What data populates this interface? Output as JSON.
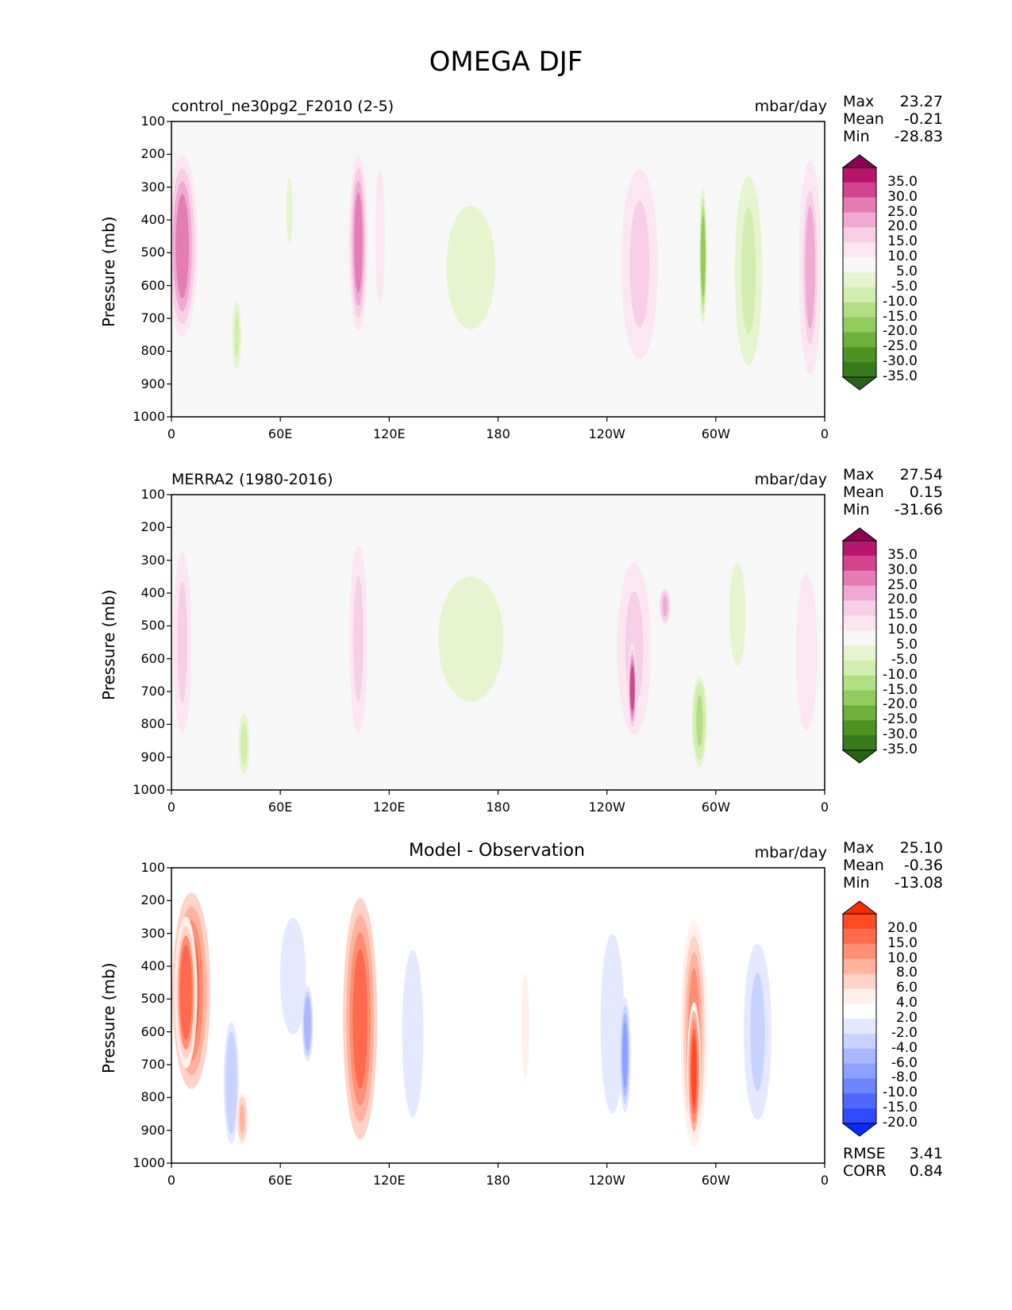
{
  "figure": {
    "title": "OMEGA DJF"
  },
  "chart_data": [
    {
      "type": "heatmap",
      "title_left": "control_ne30pg2_F2010 (2-5)",
      "units": "mbar/day",
      "ylabel": "Pressure (mb)",
      "y_ticks": [
        "100",
        "200",
        "300",
        "400",
        "500",
        "600",
        "700",
        "800",
        "900",
        "1000"
      ],
      "x_ticks": [
        "0",
        "60E",
        "120E",
        "180",
        "120W",
        "60W",
        "0"
      ],
      "xlim": [
        0,
        360
      ],
      "ylim": [
        1000,
        100
      ],
      "stats": [
        {
          "label": "Max",
          "value": "23.27"
        },
        {
          "label": "Mean",
          "value": "-0.21"
        },
        {
          "label": "Min",
          "value": "-28.83"
        }
      ],
      "colorbar": {
        "labels": [
          "35.0",
          "30.0",
          "25.0",
          "20.0",
          "15.0",
          "10.0",
          "5.0",
          "-5.0",
          "-10.0",
          "-15.0",
          "-20.0",
          "-25.0",
          "-30.0",
          "-35.0"
        ],
        "colors": [
          "#8e0152",
          "#b8166c",
          "#d1458f",
          "#e37db4",
          "#efaad3",
          "#f6cfe6",
          "#fbe6f1",
          "#f7f7f7",
          "#e6f5d0",
          "#d2edb0",
          "#b3df84",
          "#93cb5e",
          "#6fb03d",
          "#4d9222",
          "#387a1c",
          "#276419"
        ],
        "features": [
          {
            "lon": 6,
            "p_top": 180,
            "p_bot": 780,
            "width": 16,
            "value": 22
          },
          {
            "lon": 103,
            "p_top": 180,
            "p_bot": 760,
            "width": 10,
            "value": 22
          },
          {
            "lon": 115,
            "p_top": 140,
            "p_bot": 760,
            "width": 8,
            "value": 8
          },
          {
            "lon": 36,
            "p_top": 620,
            "p_bot": 880,
            "width": 6,
            "value": -12
          },
          {
            "lon": 65,
            "p_top": 180,
            "p_bot": 560,
            "width": 8,
            "value": -6
          },
          {
            "lon": 165,
            "p_top": 190,
            "p_bot": 900,
            "width": 60,
            "value": -6
          },
          {
            "lon": 258,
            "p_top": 170,
            "p_bot": 900,
            "width": 24,
            "value": 10
          },
          {
            "lon": 293,
            "p_top": 280,
            "p_bot": 740,
            "width": 4,
            "value": -22
          },
          {
            "lon": 318,
            "p_top": 190,
            "p_bot": 920,
            "width": 18,
            "value": -12
          },
          {
            "lon": 352,
            "p_top": 190,
            "p_bot": 900,
            "width": 12,
            "value": 16
          }
        ]
      }
    },
    {
      "type": "heatmap",
      "title_left": "MERRA2 (1980-2016)",
      "units": "mbar/day",
      "ylabel": "Pressure (mb)",
      "y_ticks": [
        "100",
        "200",
        "300",
        "400",
        "500",
        "600",
        "700",
        "800",
        "900",
        "1000"
      ],
      "x_ticks": [
        "0",
        "60E",
        "120E",
        "180",
        "120W",
        "60W",
        "0"
      ],
      "xlim": [
        0,
        360
      ],
      "ylim": [
        1000,
        100
      ],
      "stats": [
        {
          "label": "Max",
          "value": "27.54"
        },
        {
          "label": "Mean",
          "value": "0.15"
        },
        {
          "label": "Min",
          "value": "-31.66"
        }
      ],
      "colorbar": {
        "labels": [
          "35.0",
          "30.0",
          "25.0",
          "20.0",
          "15.0",
          "10.0",
          "5.0",
          "-5.0",
          "-10.0",
          "-15.0",
          "-20.0",
          "-25.0",
          "-30.0",
          "-35.0"
        ],
        "colors": [
          "#8e0152",
          "#b8166c",
          "#d1458f",
          "#e37db4",
          "#efaad3",
          "#f6cfe6",
          "#fbe6f1",
          "#f7f7f7",
          "#e6f5d0",
          "#d2edb0",
          "#b3df84",
          "#93cb5e",
          "#6fb03d",
          "#4d9222",
          "#387a1c",
          "#276419"
        ],
        "features": [
          {
            "lon": 6,
            "p_top": 200,
            "p_bot": 900,
            "width": 12,
            "value": 10
          },
          {
            "lon": 103,
            "p_top": 180,
            "p_bot": 900,
            "width": 12,
            "value": 10
          },
          {
            "lon": 40,
            "p_top": 760,
            "p_bot": 960,
            "width": 6,
            "value": -14
          },
          {
            "lon": 165,
            "p_top": 180,
            "p_bot": 900,
            "width": 80,
            "value": -6
          },
          {
            "lon": 255,
            "p_top": 240,
            "p_bot": 900,
            "width": 22,
            "value": 12
          },
          {
            "lon": 254,
            "p_top": 560,
            "p_bot": 820,
            "width": 4,
            "value": 26
          },
          {
            "lon": 272,
            "p_top": 380,
            "p_bot": 500,
            "width": 6,
            "value": 18
          },
          {
            "lon": 291,
            "p_top": 640,
            "p_bot": 940,
            "width": 8,
            "value": -18
          },
          {
            "lon": 312,
            "p_top": 230,
            "p_bot": 700,
            "width": 14,
            "value": -8
          },
          {
            "lon": 350,
            "p_top": 220,
            "p_bot": 940,
            "width": 18,
            "value": 8
          }
        ]
      }
    },
    {
      "type": "heatmap",
      "title_center": "Model - Observation",
      "units": "mbar/day",
      "ylabel": "Pressure (mb)",
      "y_ticks": [
        "100",
        "200",
        "300",
        "400",
        "500",
        "600",
        "700",
        "800",
        "900",
        "1000"
      ],
      "x_ticks": [
        "0",
        "60E",
        "120E",
        "180",
        "120W",
        "60W",
        "0"
      ],
      "xlim": [
        0,
        360
      ],
      "ylim": [
        1000,
        100
      ],
      "stats": [
        {
          "label": "Max",
          "value": "25.10"
        },
        {
          "label": "Mean",
          "value": "-0.36"
        },
        {
          "label": "Min",
          "value": "-13.08"
        }
      ],
      "footer": [
        {
          "label": "RMSE",
          "value": "3.41"
        },
        {
          "label": "CORR",
          "value": "0.84"
        }
      ],
      "colorbar": {
        "labels": [
          "20.0",
          "15.0",
          "10.0",
          "8.0",
          "6.0",
          "4.0",
          "2.0",
          "-2.0",
          "-4.0",
          "-6.0",
          "-8.0",
          "-10.0",
          "-15.0",
          "-20.0"
        ],
        "colors": [
          "#ff2a00",
          "#ff4a26",
          "#ff6a4d",
          "#ff8f73",
          "#ffb39f",
          "#ffd3c7",
          "#fff0ec",
          "#ffffff",
          "#e4e9ff",
          "#c8d3ff",
          "#aab9ff",
          "#8ea0ff",
          "#6f84ff",
          "#5067ff",
          "#2f49ff",
          "#0b2bff"
        ],
        "features": [
          {
            "lon": 11,
            "p_top": 150,
            "p_bot": 800,
            "width": 20,
            "value": 10
          },
          {
            "lon": 8,
            "p_top": 260,
            "p_bot": 700,
            "width": 10,
            "value": 14
          },
          {
            "lon": 33,
            "p_top": 520,
            "p_bot": 990,
            "width": 10,
            "value": -6
          },
          {
            "lon": 39,
            "p_top": 780,
            "p_bot": 950,
            "width": 6,
            "value": 7
          },
          {
            "lon": 67,
            "p_top": 160,
            "p_bot": 700,
            "width": 22,
            "value": -4
          },
          {
            "lon": 75,
            "p_top": 450,
            "p_bot": 700,
            "width": 6,
            "value": -8
          },
          {
            "lon": 104,
            "p_top": 160,
            "p_bot": 960,
            "width": 18,
            "value": 10
          },
          {
            "lon": 133,
            "p_top": 220,
            "p_bot": 990,
            "width": 18,
            "value": -4
          },
          {
            "lon": 195,
            "p_top": 280,
            "p_bot": 880,
            "width": 10,
            "value": 3
          },
          {
            "lon": 243,
            "p_top": 160,
            "p_bot": 990,
            "width": 20,
            "value": -4
          },
          {
            "lon": 250,
            "p_top": 480,
            "p_bot": 860,
            "width": 6,
            "value": -9
          },
          {
            "lon": 288,
            "p_top": 230,
            "p_bot": 980,
            "width": 14,
            "value": 8
          },
          {
            "lon": 288,
            "p_top": 520,
            "p_bot": 920,
            "width": 6,
            "value": 16
          },
          {
            "lon": 323,
            "p_top": 260,
            "p_bot": 940,
            "width": 18,
            "value": -5
          },
          {
            "lon": 350,
            "p_top": 160,
            "p_bot": 850,
            "width": 14,
            "value": 2
          }
        ]
      }
    }
  ]
}
